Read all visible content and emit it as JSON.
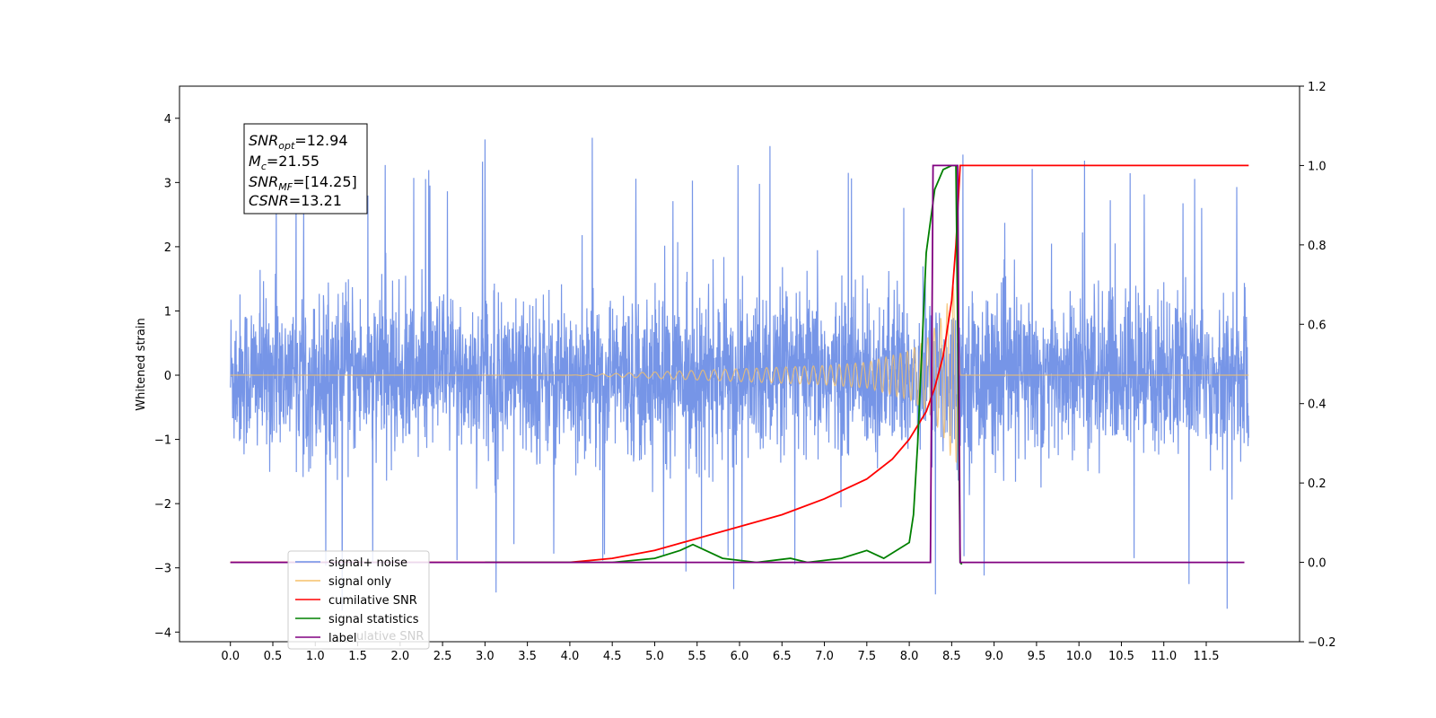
{
  "chart_data": {
    "type": "line",
    "ylabel": "Whitened strain",
    "xlim": [
      -0.6,
      12.6
    ],
    "ylim": [
      -4.15,
      4.5
    ],
    "ylim_right": [
      -0.2,
      1.2
    ],
    "x_ticks": [
      "0.0",
      "0.5",
      "1.0",
      "1.5",
      "2.0",
      "2.5",
      "3.0",
      "3.5",
      "4.0",
      "4.5",
      "5.0",
      "5.5",
      "6.0",
      "6.5",
      "7.0",
      "7.5",
      "8.0",
      "8.5",
      "9.0",
      "9.5",
      "10.0",
      "10.5",
      "11.0",
      "11.5"
    ],
    "y_ticks_left": [
      "4",
      "3",
      "2",
      "1",
      "0",
      "−1",
      "−2",
      "−3",
      "−4"
    ],
    "y_ticks_right": [
      "1.2",
      "1.0",
      "0.8",
      "0.6",
      "0.4",
      "0.2",
      "0.0",
      "−0.2"
    ],
    "legend_position": "lower-left",
    "stats_box": {
      "line1": {
        "sym": "SNR",
        "sub": "opt",
        "val": "=12.94"
      },
      "line2": {
        "sym": "M",
        "sub": "c",
        "val": "=21.55"
      },
      "line3": {
        "sym": "SNR",
        "sub": "MF",
        "val": "=[14.25]"
      },
      "line4": {
        "sym": "CSNR",
        "sub": "",
        "val": "=13.21"
      },
      "label_overlap_text": "ulative SNR"
    },
    "series": [
      {
        "name": "signal+ noise",
        "axis": "left",
        "color": "#6f8fe6",
        "x_range": [
          0.0,
          12.0
        ],
        "amplitude_typical": 1.8,
        "peak": 4.1,
        "min": -3.75
      },
      {
        "name": "signal only",
        "axis": "left",
        "color": "#f5c06a",
        "envelope": {
          "x": [
            0.0,
            4.0,
            5.0,
            6.0,
            7.0,
            7.5,
            8.0,
            8.2,
            8.4,
            8.55,
            8.6,
            12.0
          ],
          "y": [
            0.0,
            0.0,
            0.05,
            0.1,
            0.15,
            0.2,
            0.38,
            0.55,
            0.95,
            1.5,
            0.0,
            0.0
          ]
        }
      },
      {
        "name": "cumilative SNR",
        "axis": "right",
        "color": "#ff0000",
        "x": [
          0.0,
          4.0,
          4.5,
          5.0,
          5.5,
          6.0,
          6.5,
          7.0,
          7.5,
          7.8,
          8.0,
          8.2,
          8.3,
          8.4,
          8.5,
          8.55,
          8.6,
          8.65,
          12.0
        ],
        "y": [
          0.0,
          0.0,
          0.01,
          0.03,
          0.06,
          0.09,
          0.12,
          0.16,
          0.21,
          0.26,
          0.31,
          0.38,
          0.44,
          0.52,
          0.66,
          0.8,
          1.0,
          1.0,
          1.0
        ]
      },
      {
        "name": "signal statistics",
        "axis": "right",
        "color": "#008000",
        "x": [
          3.0,
          4.5,
          5.0,
          5.3,
          5.45,
          5.6,
          5.8,
          6.2,
          6.6,
          6.8,
          7.2,
          7.5,
          7.7,
          8.0,
          8.05,
          8.1,
          8.2,
          8.3,
          8.4,
          8.5,
          8.55,
          8.6,
          8.62
        ],
        "y": [
          0.0,
          0.0,
          0.01,
          0.03,
          0.045,
          0.03,
          0.01,
          0.0,
          0.01,
          0.0,
          0.01,
          0.03,
          0.01,
          0.05,
          0.12,
          0.3,
          0.78,
          0.94,
          0.99,
          1.0,
          1.0,
          0.0,
          -0.005
        ]
      },
      {
        "name": "label",
        "axis": "right",
        "color": "#800080",
        "x": [
          0.0,
          8.25,
          8.28,
          8.57,
          8.6,
          11.95
        ],
        "y": [
          0.0,
          0.0,
          1.0,
          1.0,
          0.0,
          0.0
        ]
      }
    ]
  }
}
